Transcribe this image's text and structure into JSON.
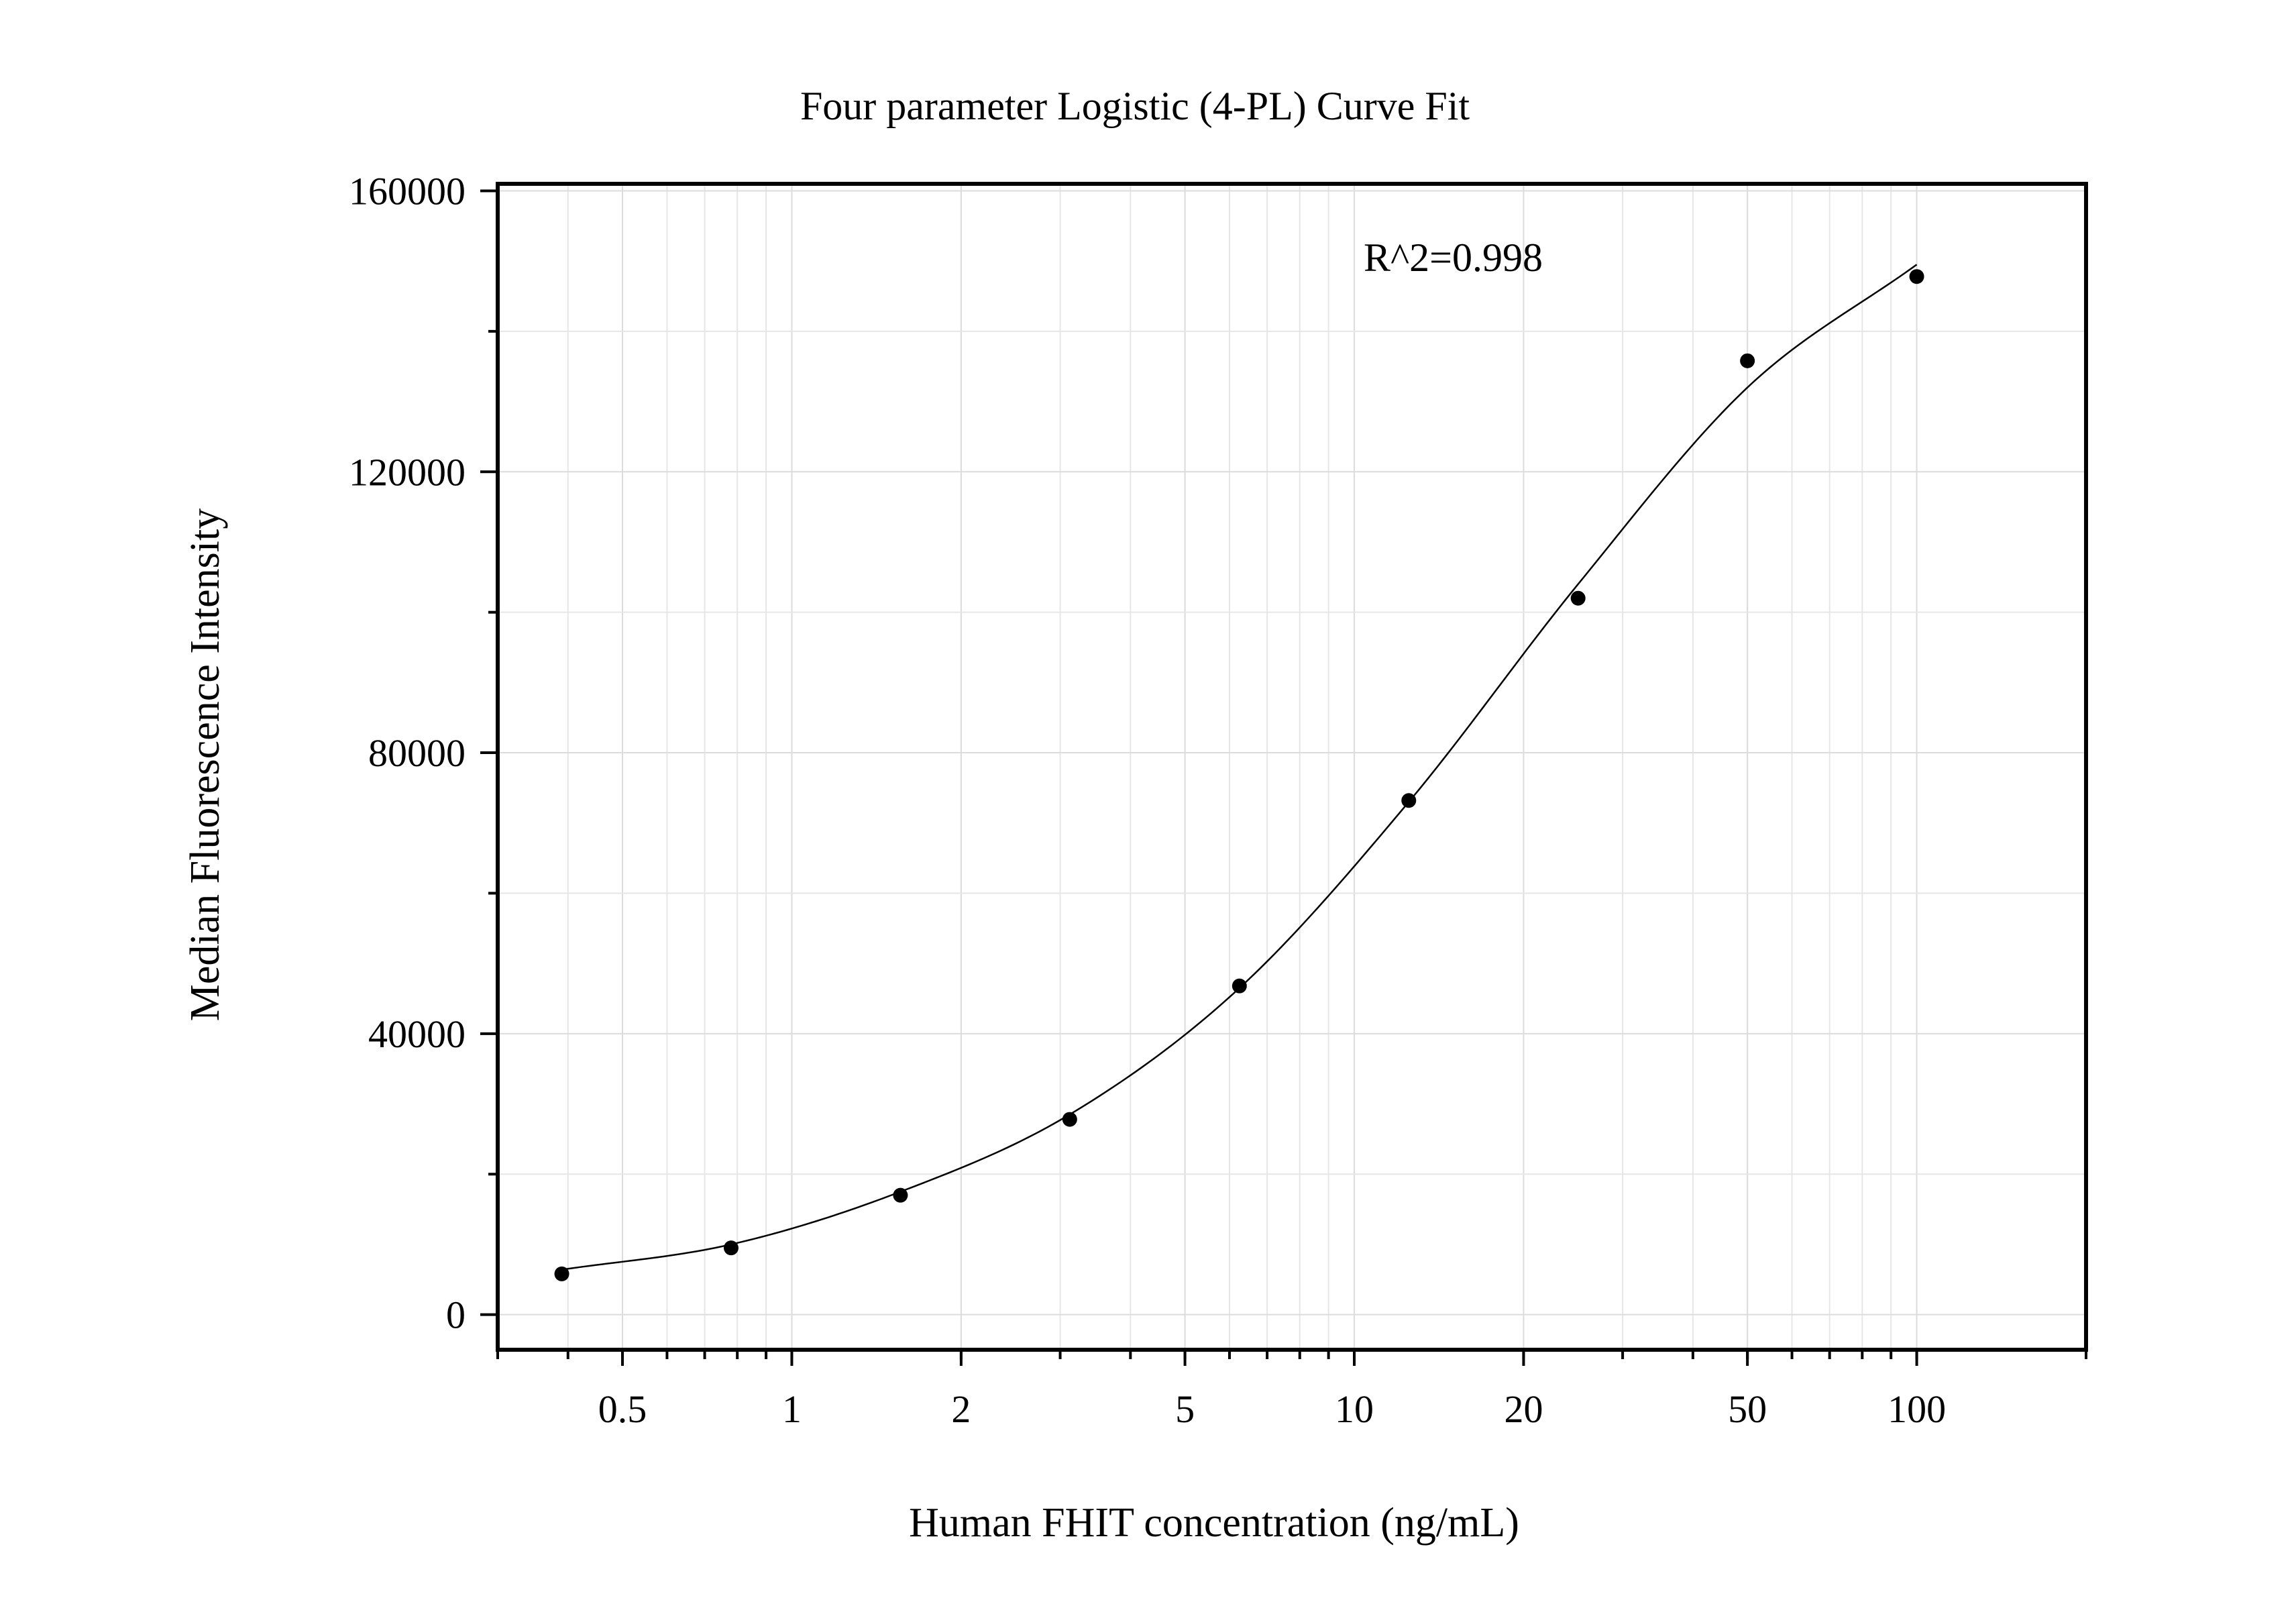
{
  "chart_data": {
    "type": "scatter",
    "title": "Four parameter Logistic (4-PL) Curve Fit",
    "xlabel": "Human FHIT concentration (ng/mL)",
    "ylabel": "Median Fluorescence Intensity",
    "x_scale": "log",
    "xlim": [
      0.3,
      200
    ],
    "ylim": [
      -5000,
      161000
    ],
    "x_ticks": [
      0.5,
      1,
      2,
      5,
      10,
      20,
      50,
      100
    ],
    "x_tick_labels": [
      "0.5",
      "1",
      "2",
      "5",
      "10",
      "20",
      "50",
      "100"
    ],
    "y_ticks": [
      0,
      40000,
      80000,
      120000,
      160000
    ],
    "y_tick_labels": [
      "0",
      "40000",
      "80000",
      "120000",
      "160000"
    ],
    "grid": true,
    "annotation": "R^2=0.998",
    "series": [
      {
        "type": "scatter",
        "x": [
          0.39,
          0.78,
          1.56,
          3.12,
          6.25,
          12.5,
          25,
          50,
          100
        ],
        "y": [
          5800,
          9500,
          17000,
          27800,
          46800,
          73200,
          102000,
          135800,
          147800
        ]
      }
    ],
    "fit": {
      "type": "4PL",
      "x_range": [
        0.39,
        100
      ],
      "curve_points": [
        [
          0.39,
          6400
        ],
        [
          0.78,
          10000
        ],
        [
          1.56,
          17500
        ],
        [
          3.12,
          28500
        ],
        [
          6.25,
          46500
        ],
        [
          12.5,
          73000
        ],
        [
          25,
          104000
        ],
        [
          50,
          132000
        ],
        [
          100,
          149500
        ]
      ]
    }
  }
}
